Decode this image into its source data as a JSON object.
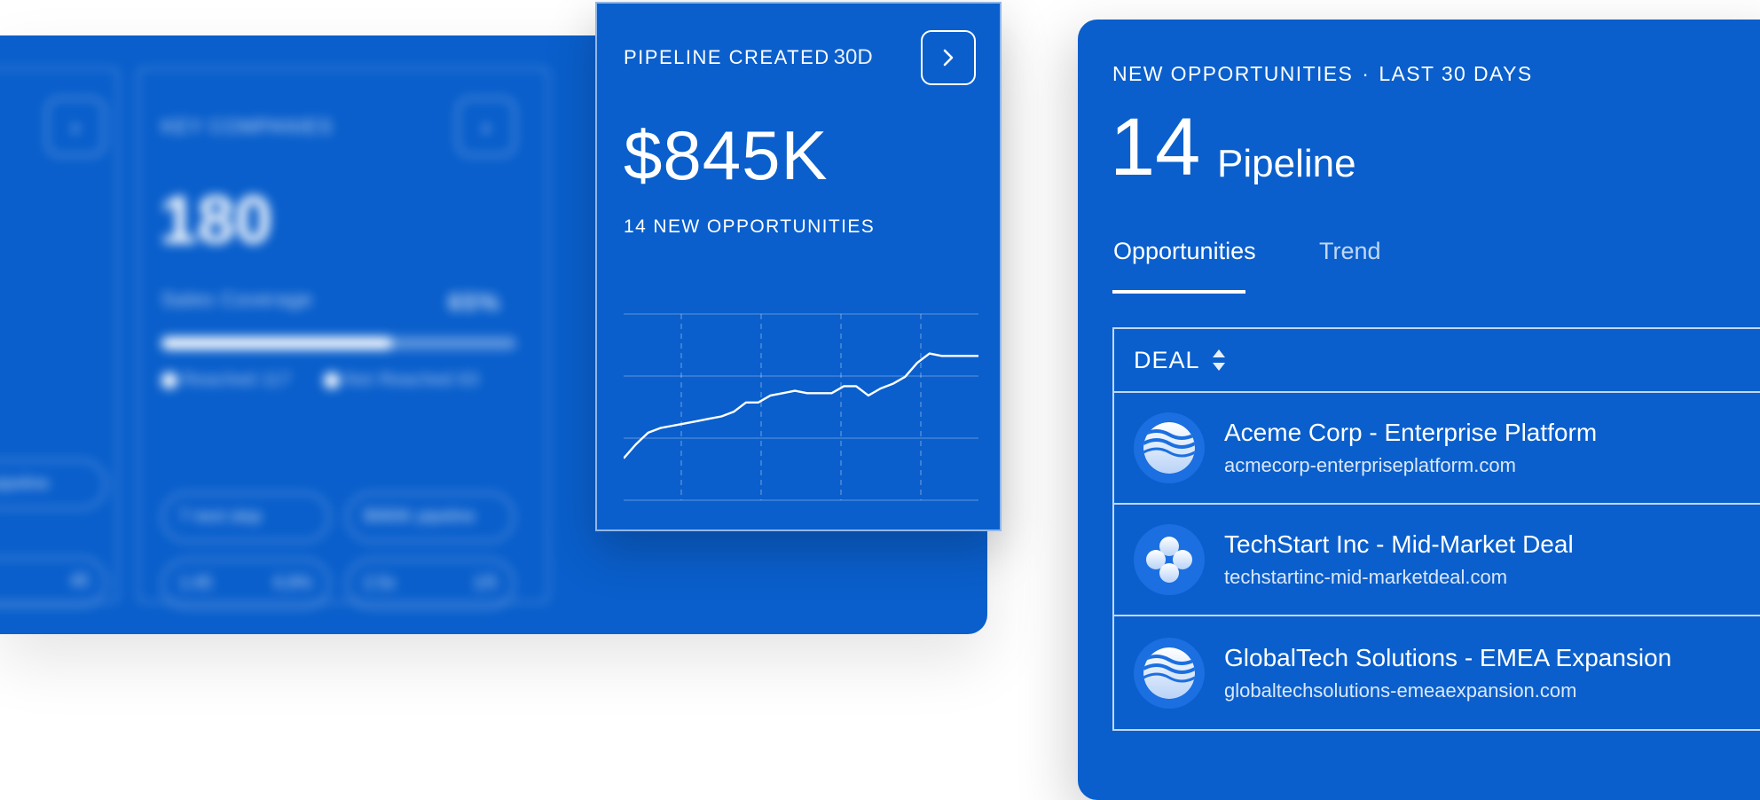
{
  "background_panel": {
    "card_title": "KEY COMPANIES",
    "card_value": "180",
    "coverage_label": "Sales Coverage",
    "coverage_percent": "65%",
    "coverage_fraction": 0.65,
    "legend_reached": "Reached 117",
    "legend_not_reached": "Not Reached 63",
    "chips": [
      "7 next step",
      "$990K pipeline",
      "1:45",
      "6.8%",
      "2.5x",
      "1/5"
    ],
    "left_chip": "pipeline",
    "left_small": "45"
  },
  "pipeline_card": {
    "title": "PIPELINE CREATED",
    "period": "30D",
    "value": "$845K",
    "subtitle": "14 NEW OPPORTUNITIES",
    "arrow_icon": "chevron-right-icon"
  },
  "chart_data": {
    "type": "line",
    "title": "",
    "xlabel": "",
    "ylabel": "",
    "x": [
      1,
      2,
      3,
      4,
      5,
      6,
      7,
      8,
      9,
      10,
      11,
      12,
      13,
      14,
      15,
      16,
      17,
      18,
      19,
      20,
      21,
      22,
      23,
      24,
      25,
      26,
      27,
      28,
      29,
      30
    ],
    "series": [
      {
        "values": [
          18,
          24,
          29,
          31,
          32,
          33,
          34,
          35,
          36,
          38,
          42,
          42,
          45,
          46,
          47,
          46,
          46,
          46,
          49,
          49,
          45,
          48,
          50,
          53,
          59,
          63,
          62,
          62,
          62,
          62
        ]
      }
    ],
    "ylim": [
      0,
      80
    ],
    "grid": true
  },
  "opportunities_card": {
    "header": "NEW OPPORTUNITIES",
    "separator": "·",
    "period": "LAST 30 DAYS",
    "count": "14",
    "count_label": "Pipeline",
    "tabs": [
      {
        "label": "Opportunities",
        "active": true
      },
      {
        "label": "Trend",
        "active": false
      }
    ],
    "table_header": "DEAL",
    "deals": [
      {
        "name": "Aceme Corp - Enterprise Platform",
        "domain": "acmecorp-enterpriseplatform.com",
        "logo": "waves-logo"
      },
      {
        "name": "TechStart Inc - Mid-Market Deal",
        "domain": "techstartinc-mid-marketdeal.com",
        "logo": "clover-logo"
      },
      {
        "name": "GlobalTech Solutions - EMEA Expansion",
        "domain": "globaltechsolutions-emeaexpansion.com",
        "logo": "waves-logo"
      }
    ]
  },
  "colors": {
    "brand_blue": "#0a5fcc",
    "text": "#ffffff",
    "page_background": "#ffffff"
  }
}
